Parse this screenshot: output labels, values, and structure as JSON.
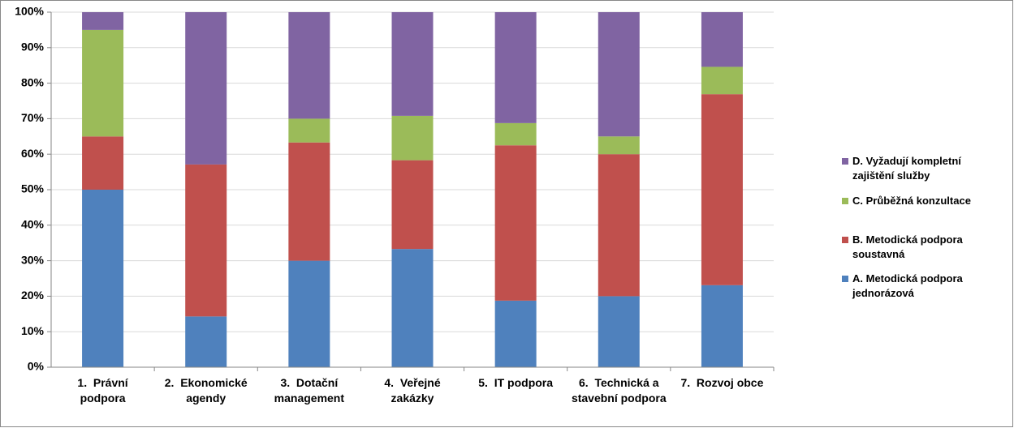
{
  "chart_data": {
    "type": "stacked_bar",
    "categories": [
      "1.  Právní podpora",
      "2.  Ekonomické agendy",
      "3.  Dotační management",
      "4.  Veřejné zakázky",
      "5.  IT podpora",
      "6.  Technická a stavební podpora",
      "7.  Rozvoj obce"
    ],
    "series": [
      {
        "name": "A. Metodická podpora jednorázová",
        "color": "#4f81bd",
        "values": [
          50,
          14.3,
          30,
          33.3,
          18.75,
          20,
          23.1
        ]
      },
      {
        "name": "B. Metodická podpora soustavná",
        "color": "#c0504d",
        "values": [
          15,
          42.8,
          33.3,
          25,
          43.75,
          40,
          53.8
        ]
      },
      {
        "name": "C. Průběžná konzultace",
        "color": "#9bbb59",
        "values": [
          30,
          0,
          6.7,
          12.5,
          6.25,
          5,
          7.7
        ]
      },
      {
        "name": "D. Vyžadují kompletní zajištění služby",
        "color": "#8064a2",
        "values": [
          5,
          42.9,
          30,
          29.2,
          31.25,
          35,
          15.4
        ]
      }
    ],
    "ylim": [
      0,
      100
    ],
    "yticks": [
      {
        "value": 0,
        "label": "0%"
      },
      {
        "value": 10,
        "label": "10%"
      },
      {
        "value": 20,
        "label": "20%"
      },
      {
        "value": 30,
        "label": "30%"
      },
      {
        "value": 40,
        "label": "40%"
      },
      {
        "value": 50,
        "label": "50%"
      },
      {
        "value": 60,
        "label": "60%"
      },
      {
        "value": 70,
        "label": "70%"
      },
      {
        "value": 80,
        "label": "80%"
      },
      {
        "value": 90,
        "label": "90%"
      },
      {
        "value": 100,
        "label": "100%"
      }
    ],
    "grid": true,
    "legend": "right"
  }
}
